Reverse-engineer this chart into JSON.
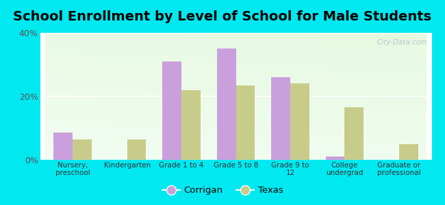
{
  "title": "School Enrollment by Level of School for Male Students",
  "categories": [
    "Nursery,\npreschool",
    "Kindergarten",
    "Grade 1 to 4",
    "Grade 5 to 8",
    "Grade 9 to\n12",
    "College\nundergrad",
    "Graduate or\nprofessional"
  ],
  "corrigan": [
    8.5,
    0,
    31,
    35,
    26,
    1,
    0
  ],
  "texas": [
    6.5,
    6.5,
    22,
    23.5,
    24,
    16.5,
    5
  ],
  "corrigan_color": "#c9a0dc",
  "texas_color": "#c8cc8a",
  "background_color": "#00e8f0",
  "ylim": [
    0,
    40
  ],
  "yticks": [
    0,
    20,
    40
  ],
  "ytick_labels": [
    "0%",
    "20%",
    "40%"
  ],
  "bar_width": 0.35,
  "title_fontsize": 14,
  "legend_labels": [
    "Corrigan",
    "Texas"
  ],
  "watermark": "City-Data.com"
}
